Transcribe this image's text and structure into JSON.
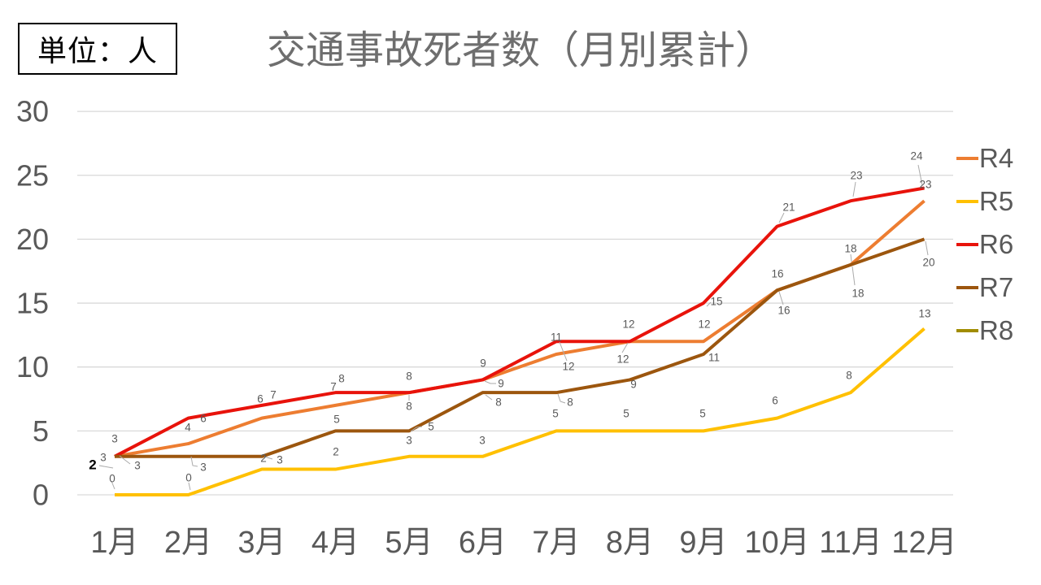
{
  "unit_box": {
    "label": "単位：人"
  },
  "title": "交通事故死者数（月別累計）",
  "chart_data": {
    "type": "line",
    "title": "交通事故死者数（月別累計）",
    "unit": "単位：人",
    "categories": [
      "1月",
      "2月",
      "3月",
      "4月",
      "5月",
      "6月",
      "7月",
      "8月",
      "9月",
      "10月",
      "11月",
      "12月"
    ],
    "yticks": [
      0,
      5,
      10,
      15,
      20,
      25,
      30
    ],
    "ylim": [
      0,
      30
    ],
    "grid": true,
    "legend_position": "right",
    "axis_color": "#595959",
    "grid_color": "#d9d9d9",
    "data_label_color": "#595959",
    "series": [
      {
        "name": "R4",
        "color": "#ED7D31",
        "values": [
          3,
          4,
          6,
          7,
          8,
          9,
          11,
          12,
          12,
          16,
          18,
          23
        ]
      },
      {
        "name": "R5",
        "color": "#FFC000",
        "values": [
          0,
          0,
          2,
          2,
          3,
          3,
          5,
          5,
          5,
          6,
          8,
          13
        ]
      },
      {
        "name": "R6",
        "color": "#E8130B",
        "values": [
          3,
          6,
          7,
          8,
          8,
          9,
          12,
          12,
          15,
          21,
          23,
          24
        ]
      },
      {
        "name": "R7",
        "color": "#9C560E",
        "values": [
          3,
          3,
          3,
          5,
          5,
          8,
          8,
          9,
          11,
          16,
          18,
          20
        ]
      },
      {
        "name": "R8",
        "color": "#A18C00",
        "values": [
          2
        ],
        "label_bold": true,
        "label_color": "#000000"
      }
    ]
  }
}
